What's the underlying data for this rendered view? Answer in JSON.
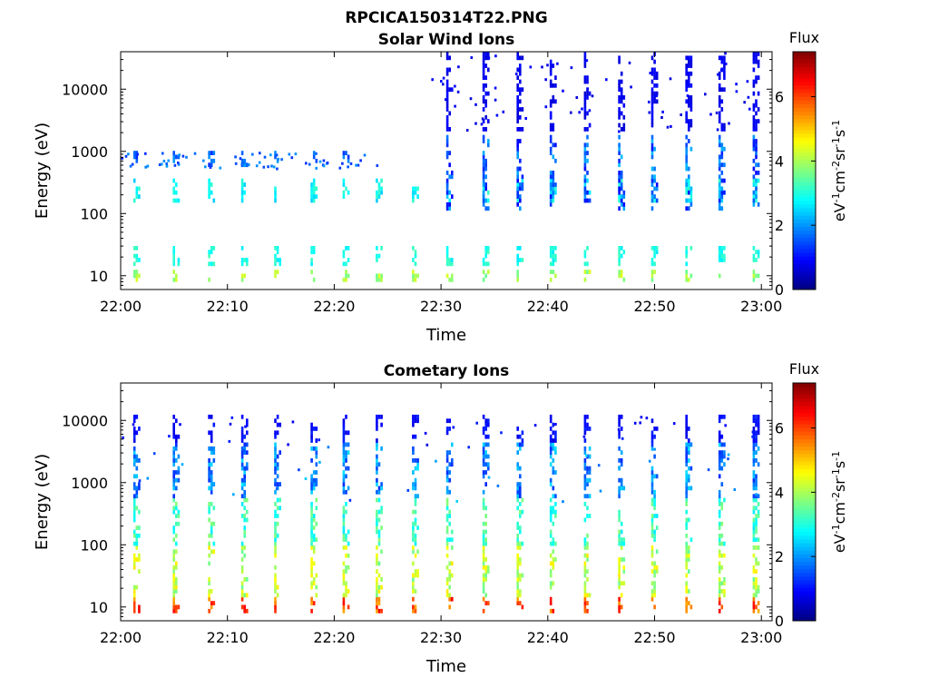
{
  "figure_title": "RPCICA150314T22.PNG",
  "chart_data": [
    {
      "type": "heatmap",
      "title": "Solar Wind Ions",
      "xlabel": "Time",
      "ylabel": "Energy (eV)",
      "y_scale": "log",
      "ylim": [
        6,
        40000
      ],
      "x_range": [
        "22:00",
        "23:01"
      ],
      "x_ticks": [
        "22:00",
        "22:10",
        "22:20",
        "22:30",
        "22:40",
        "22:50",
        "23:00"
      ],
      "x_tick_minutes": [
        0,
        10,
        20,
        30,
        40,
        50,
        60
      ],
      "y_ticks": [
        10,
        100,
        1000,
        10000
      ],
      "y_tick_labels": [
        "10",
        "100",
        "1000",
        "10000"
      ],
      "colorbar": {
        "label": "Flux",
        "unit": "eV-1cm-2sr-1s-1",
        "range": [
          0,
          7.4
        ],
        "ticks": [
          0,
          2,
          4,
          6
        ]
      },
      "grid": false,
      "sweep_times_min": [
        1.4,
        5.1,
        8.4,
        11.5,
        14.6,
        18.0,
        21.0,
        24.1,
        27.5,
        30.7,
        34.1,
        37.3,
        40.4,
        43.6,
        46.8,
        49.9,
        53.1,
        56.2,
        59.4
      ],
      "bands": [
        {
          "time_range": [
            0,
            60
          ],
          "energy_range": [
            7,
            12
          ],
          "level_range": [
            3.5,
            4.4
          ]
        },
        {
          "time_range": [
            0,
            60
          ],
          "energy_range": [
            14,
            30
          ],
          "level_range": [
            2.6,
            3.3
          ]
        },
        {
          "time_range": [
            0,
            60
          ],
          "energy_range": [
            150,
            350
          ],
          "level_range": [
            2.4,
            3.2
          ]
        },
        {
          "time_range": [
            0,
            24
          ],
          "energy_range": [
            550,
            1000
          ],
          "level_range": [
            1.2,
            2.1
          ]
        },
        {
          "time_range": [
            29,
            60
          ],
          "energy_range": [
            100,
            1800
          ],
          "level_range": [
            0.9,
            2.3
          ]
        },
        {
          "time_range": [
            29,
            60
          ],
          "energy_range": [
            2000,
            40000
          ],
          "level_range": [
            0.6,
            1.0
          ]
        }
      ]
    },
    {
      "type": "heatmap",
      "title": "Cometary Ions",
      "xlabel": "Time",
      "ylabel": "Energy (eV)",
      "y_scale": "log",
      "ylim": [
        6,
        40000
      ],
      "x_range": [
        "22:00",
        "23:01"
      ],
      "x_ticks": [
        "22:00",
        "22:10",
        "22:20",
        "22:30",
        "22:40",
        "22:50",
        "23:00"
      ],
      "x_tick_minutes": [
        0,
        10,
        20,
        30,
        40,
        50,
        60
      ],
      "y_ticks": [
        10,
        100,
        1000,
        10000
      ],
      "y_tick_labels": [
        "10",
        "100",
        "1000",
        "10000"
      ],
      "colorbar": {
        "label": "Flux",
        "unit": "eV-1cm-2sr-1s-1",
        "range": [
          0,
          7.4
        ],
        "ticks": [
          0,
          2,
          4,
          6
        ]
      },
      "grid": false,
      "sweep_times_min": [
        1.4,
        5.1,
        8.4,
        11.5,
        14.6,
        18.0,
        21.0,
        24.1,
        27.5,
        30.7,
        34.1,
        37.3,
        40.4,
        43.6,
        46.8,
        49.9,
        53.1,
        56.2,
        59.4
      ],
      "bands": [
        {
          "time_range": [
            0,
            60
          ],
          "energy_range": [
            7,
            13
          ],
          "level_range": [
            5.2,
            6.6
          ]
        },
        {
          "time_range": [
            0,
            60
          ],
          "energy_range": [
            14,
            90
          ],
          "level_range": [
            3.5,
            4.8
          ]
        },
        {
          "time_range": [
            0,
            60
          ],
          "energy_range": [
            90,
            500
          ],
          "level_range": [
            2.6,
            3.8
          ]
        },
        {
          "time_range": [
            0,
            60
          ],
          "energy_range": [
            500,
            4000
          ],
          "level_range": [
            1.2,
            2.6
          ]
        },
        {
          "time_range": [
            0,
            60
          ],
          "energy_range": [
            4000,
            12000
          ],
          "level_range": [
            0.7,
            1.2
          ]
        }
      ]
    }
  ]
}
